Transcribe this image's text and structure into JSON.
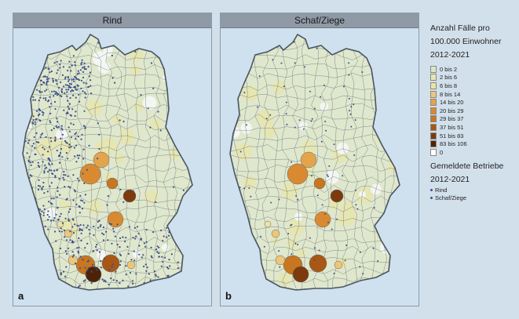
{
  "panels": [
    {
      "id": "a",
      "title": "Rind",
      "letter": "a"
    },
    {
      "id": "b",
      "title": "Schaf/Ziege",
      "letter": "b"
    }
  ],
  "legend": {
    "title_line1": "Anzahl Fälle pro",
    "title_line2": "100.000 Einwohner",
    "title_line3": "2012-2021",
    "classes": [
      {
        "label": "0 bis 2",
        "color": "#d9e6c6"
      },
      {
        "label": "2 bis 6",
        "color": "#e6e6b3"
      },
      {
        "label": "6 bis 8",
        "color": "#ede3a0"
      },
      {
        "label": "8 bis 14",
        "color": "#ecc67a"
      },
      {
        "label": "14 bis 20",
        "color": "#e3a44c"
      },
      {
        "label": "20 bis 29",
        "color": "#d98a30"
      },
      {
        "label": "29 bis 37",
        "color": "#c8761f"
      },
      {
        "label": "37 bis 51",
        "color": "#a95714"
      },
      {
        "label": "51 bis 83",
        "color": "#7d3a0c"
      },
      {
        "label": "83 bis 106",
        "color": "#4d2308"
      },
      {
        "label": "0",
        "color": "#ffffff"
      }
    ],
    "betriebe_title_line1": "Gemeldete Betriebe",
    "betriebe_title_line2": "2012-2021",
    "betriebe_items": [
      {
        "label": "Rind",
        "color": "#3d4f8c"
      },
      {
        "label": "Schaf/Ziege",
        "color": "#3d4f8c"
      }
    ]
  },
  "colors": {
    "background": "#d2e0ec",
    "map_fill": "#dfe7cd",
    "border_line": "#5a6470",
    "dot": "#3d4f8c"
  }
}
